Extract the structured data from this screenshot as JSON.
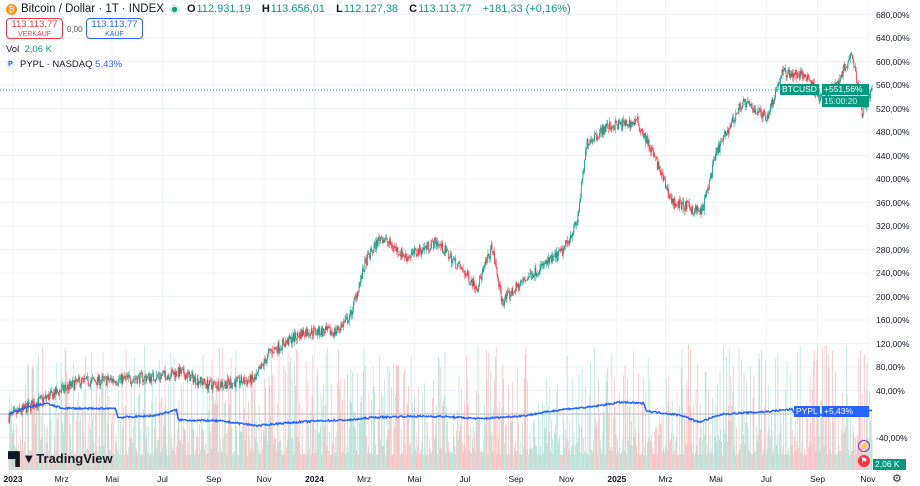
{
  "header": {
    "symbol_title": "Bitcoin / Dollar · 1T · INDEX",
    "logo_icon": "bitcoin-icon",
    "market_status": "open",
    "open_label": "O",
    "open": "112.931,19",
    "high_label": "H",
    "high": "113.656,01",
    "low_label": "L",
    "low": "112.127,38",
    "close_label": "C",
    "close": "113.113,77",
    "change": "+181,33 (+0,16%)"
  },
  "trade": {
    "sell_price": "113.113,77",
    "sell_label": "VERKAUF",
    "spread": "0,00",
    "buy_price": "113.113,77",
    "buy_label": "KAUF"
  },
  "volume": {
    "label": "Vol",
    "value": "2,06 K"
  },
  "compare": {
    "label": "PYPL · NASDAQ",
    "value": "5,43%"
  },
  "branding": "TradingView",
  "colors": {
    "up": "#089981",
    "down": "#f23645",
    "pypl": "#2962ff",
    "up_vol": "#9fd9cc",
    "down_vol": "#f7a9ae"
  },
  "chart_data": {
    "type": "line",
    "scale": "percent",
    "grid": true,
    "ylim": [
      -80,
      700
    ],
    "y_ticks": [
      "680,00%",
      "640,00%",
      "600,00%",
      "560,00%",
      "520,00%",
      "480,00%",
      "440,00%",
      "400,00%",
      "360,00%",
      "320,00%",
      "280,00%",
      "240,00%",
      "200,00%",
      "160,00%",
      "120,00%",
      "80,00%",
      "40,00%",
      "-40,00%"
    ],
    "x_ticks": [
      {
        "t": "2023",
        "b": true,
        "d": "2023-01-01"
      },
      {
        "t": "Mrz",
        "d": "2023-03-01"
      },
      {
        "t": "Mai",
        "d": "2023-05-01"
      },
      {
        "t": "Jul",
        "d": "2023-07-01"
      },
      {
        "t": "Sep",
        "d": "2023-09-01"
      },
      {
        "t": "Nov",
        "d": "2023-11-01"
      },
      {
        "t": "2024",
        "b": true,
        "d": "2024-01-01"
      },
      {
        "t": "Mrz",
        "d": "2024-03-01"
      },
      {
        "t": "Mai",
        "d": "2024-05-01"
      },
      {
        "t": "Jul",
        "d": "2024-07-01"
      },
      {
        "t": "Sep",
        "d": "2024-09-01"
      },
      {
        "t": "Nov",
        "d": "2024-11-01"
      },
      {
        "t": "2025",
        "b": true,
        "d": "2025-01-01"
      },
      {
        "t": "Mrz",
        "d": "2025-03-01"
      },
      {
        "t": "Mai",
        "d": "2025-05-01"
      },
      {
        "t": "Jul",
        "d": "2025-07-01"
      },
      {
        "t": "Sep",
        "d": "2025-09-01"
      },
      {
        "t": "Nov",
        "d": "2025-11-01"
      }
    ],
    "series": [
      {
        "name": "BTCUSD",
        "style": "candles",
        "last_label": "+551,56%",
        "countdown": "15:00:20",
        "points": [
          [
            "2022-12-27",
            -5
          ],
          [
            "2023-02-08",
            26
          ],
          [
            "2023-03-22",
            55
          ],
          [
            "2023-05-04",
            58
          ],
          [
            "2023-06-21",
            63
          ],
          [
            "2023-07-22",
            71
          ],
          [
            "2023-08-27",
            49
          ],
          [
            "2023-10-21",
            58
          ],
          [
            "2023-11-08",
            106
          ],
          [
            "2023-12-20",
            140
          ],
          [
            "2024-01-26",
            140
          ],
          [
            "2024-02-13",
            165
          ],
          [
            "2024-03-03",
            259
          ],
          [
            "2024-03-21",
            302
          ],
          [
            "2024-04-21",
            267
          ],
          [
            "2024-05-28",
            293
          ],
          [
            "2024-07-16",
            216
          ],
          [
            "2024-08-03",
            284
          ],
          [
            "2024-08-15",
            191
          ],
          [
            "2024-09-15",
            233
          ],
          [
            "2024-10-27",
            276
          ],
          [
            "2024-11-14",
            327
          ],
          [
            "2024-11-26",
            463
          ],
          [
            "2024-12-20",
            489
          ],
          [
            "2025-01-26",
            497
          ],
          [
            "2025-02-13",
            446
          ],
          [
            "2025-03-09",
            361
          ],
          [
            "2025-04-14",
            344
          ],
          [
            "2025-05-02",
            446
          ],
          [
            "2025-06-02",
            531
          ],
          [
            "2025-07-02",
            506
          ],
          [
            "2025-07-20",
            582
          ],
          [
            "2025-08-20",
            574
          ],
          [
            "2025-09-07",
            531
          ],
          [
            "2025-09-25",
            565
          ],
          [
            "2025-10-13",
            616
          ],
          [
            "2025-10-25",
            514
          ],
          [
            "2025-11-06",
            552
          ]
        ]
      },
      {
        "name": "PYPL",
        "style": "line",
        "last_label": "+5,43%",
        "points": [
          [
            "2022-12-27",
            0
          ],
          [
            "2023-01-20",
            12
          ],
          [
            "2023-02-10",
            18
          ],
          [
            "2023-03-01",
            10
          ],
          [
            "2023-04-10",
            9
          ],
          [
            "2023-05-05",
            10
          ],
          [
            "2023-05-08",
            -6
          ],
          [
            "2023-06-20",
            -3
          ],
          [
            "2023-07-10",
            4
          ],
          [
            "2023-07-18",
            7
          ],
          [
            "2023-07-20",
            -10
          ],
          [
            "2023-09-10",
            -12
          ],
          [
            "2023-10-25",
            -20
          ],
          [
            "2023-11-20",
            -16
          ],
          [
            "2024-01-01",
            -12
          ],
          [
            "2024-02-15",
            -10
          ],
          [
            "2024-03-10",
            -6
          ],
          [
            "2024-04-20",
            -4
          ],
          [
            "2024-06-01",
            -4
          ],
          [
            "2024-07-20",
            -8
          ],
          [
            "2024-09-10",
            -3
          ],
          [
            "2024-10-28",
            8
          ],
          [
            "2024-12-01",
            12
          ],
          [
            "2025-01-05",
            20
          ],
          [
            "2025-02-03",
            18
          ],
          [
            "2025-02-06",
            5
          ],
          [
            "2025-03-20",
            -2
          ],
          [
            "2025-04-10",
            -14
          ],
          [
            "2025-05-10",
            0
          ],
          [
            "2025-07-01",
            4
          ],
          [
            "2025-08-01",
            8
          ],
          [
            "2025-08-05",
            0
          ],
          [
            "2025-09-20",
            -2
          ],
          [
            "2025-10-28",
            6
          ],
          [
            "2025-11-06",
            5.43
          ]
        ]
      }
    ],
    "volume_last": "2,06 K"
  }
}
